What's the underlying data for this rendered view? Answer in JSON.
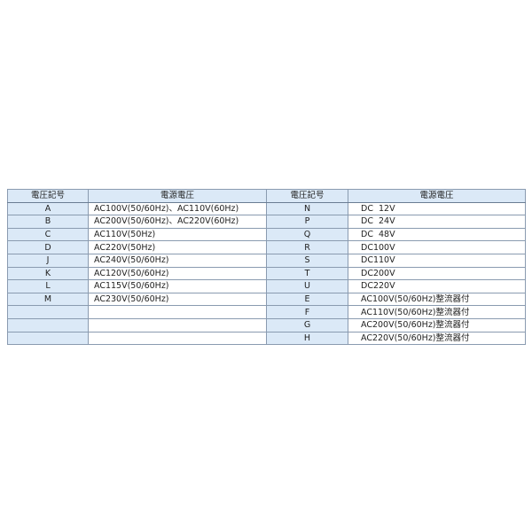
{
  "headers": {
    "code": "電圧記号",
    "voltage": "電源電圧"
  },
  "left_rows": [
    {
      "code": "A",
      "voltage": "AC100V(50/60Hz)、AC110V(60Hz)"
    },
    {
      "code": "B",
      "voltage": "AC200V(50/60Hz)、AC220V(60Hz)"
    },
    {
      "code": "C",
      "voltage": "AC110V(50Hz)"
    },
    {
      "code": "D",
      "voltage": "AC220V(50Hz)"
    },
    {
      "code": "J",
      "voltage": "AC240V(50/60Hz)"
    },
    {
      "code": "K",
      "voltage": "AC120V(50/60Hz)"
    },
    {
      "code": "L",
      "voltage": "AC115V(50/60Hz)"
    },
    {
      "code": "M",
      "voltage": "AC230V(50/60Hz)"
    },
    {
      "code": "",
      "voltage": ""
    },
    {
      "code": "",
      "voltage": ""
    },
    {
      "code": "",
      "voltage": ""
    }
  ],
  "right_rows": [
    {
      "code": "N",
      "voltage": "DC  12V"
    },
    {
      "code": "P",
      "voltage": "DC  24V"
    },
    {
      "code": "Q",
      "voltage": "DC  48V"
    },
    {
      "code": "R",
      "voltage": "DC100V"
    },
    {
      "code": "S",
      "voltage": "DC110V"
    },
    {
      "code": "T",
      "voltage": "DC200V"
    },
    {
      "code": "U",
      "voltage": "DC220V"
    },
    {
      "code": "E",
      "voltage": "AC100V(50/60Hz)整流器付"
    },
    {
      "code": "F",
      "voltage": "AC110V(50/60Hz)整流器付"
    },
    {
      "code": "G",
      "voltage": "AC200V(50/60Hz)整流器付"
    },
    {
      "code": "H",
      "voltage": "AC220V(50/60Hz)整流器付"
    }
  ]
}
